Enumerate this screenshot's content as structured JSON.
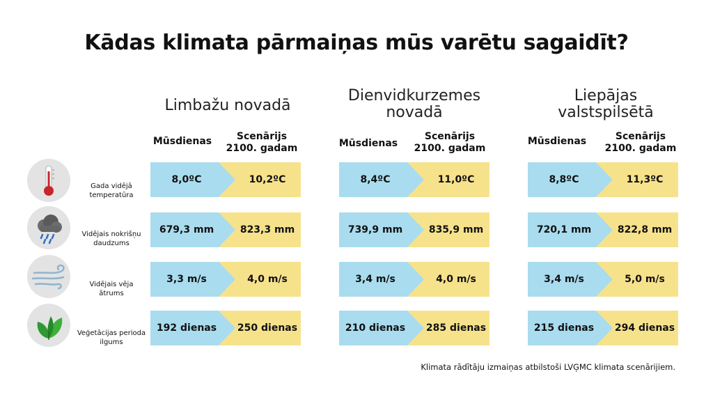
{
  "title": "Kādas klimata pārmaiņas mūs varētu sagaidīt?",
  "colors": {
    "current": "#a9dcef",
    "future": "#f7e28c",
    "icon_bg": "#e3e3e3"
  },
  "regions": [
    {
      "name_line1": "Limbažu novadā",
      "name_line2": "",
      "col_current": "Mūsdienas",
      "col_future_line1": "Scenārijs",
      "col_future_line2": "2100. gadam",
      "values": [
        {
          "current": "8,0ºC",
          "future": "10,2ºC"
        },
        {
          "current": "679,3 mm",
          "future": "823,3 mm"
        },
        {
          "current": "3,3 m/s",
          "future": "4,0 m/s"
        },
        {
          "current": "192 dienas",
          "future": "250 dienas"
        }
      ]
    },
    {
      "name_line1": "Dienvidkurzemes",
      "name_line2": "novadā",
      "col_current": "Mūsdienas",
      "col_future_line1": "Scenārijs",
      "col_future_line2": "2100. gadam",
      "values": [
        {
          "current": "8,4ºC",
          "future": "11,0ºC"
        },
        {
          "current": "739,9 mm",
          "future": "835,9 mm"
        },
        {
          "current": "3,4 m/s",
          "future": "4,0 m/s"
        },
        {
          "current": "210  dienas",
          "future": "285 dienas"
        }
      ]
    },
    {
      "name_line1": "Liepājas",
      "name_line2": "valstspilsētā",
      "col_current": "Mūsdienas",
      "col_future_line1": "Scenārijs",
      "col_future_line2": "2100. gadam",
      "values": [
        {
          "current": "8,8ºC",
          "future": "11,3ºC"
        },
        {
          "current": "720,1 mm",
          "future": "822,8 mm"
        },
        {
          "current": "3,4 m/s",
          "future": "5,0 m/s"
        },
        {
          "current": "215 dienas",
          "future": "294 dienas"
        }
      ]
    }
  ],
  "indicators": [
    {
      "icon": "thermometer-icon",
      "label_line1": "Gada vidējā",
      "label_line2": "temperatūra"
    },
    {
      "icon": "rain-cloud-icon",
      "label_line1": "Vidējais nokrišņu",
      "label_line2": "daudzums"
    },
    {
      "icon": "wind-icon",
      "label_line1": "Vidējais vēja",
      "label_line2": "ātrums"
    },
    {
      "icon": "leaves-icon",
      "label_line1": "Veģetācijas perioda",
      "label_line2": "ilgums"
    }
  ],
  "footnote": "Klimata rādītāju izmaiņas atbilstoši LVĢMC klimata scenārijiem."
}
